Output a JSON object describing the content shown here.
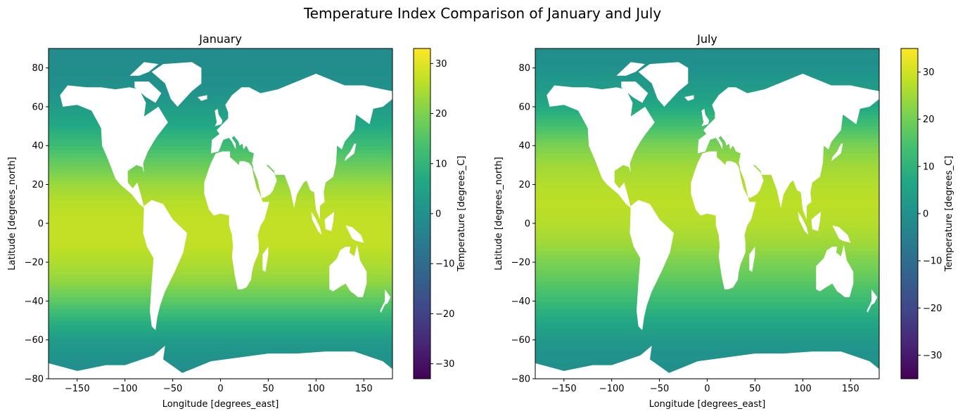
{
  "figure": {
    "suptitle": "Temperature Index Comparison of January and July",
    "colormap": "viridis",
    "land_color": "#ffffff"
  },
  "chart_data": [
    {
      "type": "heatmap",
      "title": "January",
      "xlabel": "Longitude [degrees_east]",
      "ylabel": "Latitude [degrees_north]",
      "xlim": [
        -180,
        180
      ],
      "ylim": [
        -80,
        90
      ],
      "xticks": [
        -150,
        -100,
        -50,
        0,
        50,
        100,
        150
      ],
      "xtick_labels": [
        "−150",
        "−100",
        "−50",
        "0",
        "50",
        "100",
        "150"
      ],
      "yticks": [
        -80,
        -60,
        -40,
        -20,
        0,
        20,
        40,
        60,
        80
      ],
      "ytick_labels": [
        "−80",
        "−60",
        "−40",
        "−20",
        "0",
        "20",
        "40",
        "60",
        "80"
      ],
      "colorbar": {
        "label": "Temperature [degrees_C]",
        "range": [
          -33,
          33
        ],
        "ticks": [
          -30,
          -20,
          -10,
          0,
          10,
          20,
          30
        ],
        "tick_labels": [
          "−30",
          "−20",
          "−10",
          "0",
          "10",
          "20",
          "30"
        ]
      },
      "latitude_profile": {
        "lat": [
          -78,
          -70,
          -60,
          -50,
          -40,
          -30,
          -20,
          -10,
          0,
          10,
          20,
          30,
          40,
          50,
          60,
          70,
          80,
          90
        ],
        "temperature": [
          -1,
          0,
          3,
          9,
          16,
          22,
          25,
          27,
          27,
          26,
          23,
          18,
          12,
          7,
          3,
          0,
          -1,
          -1
        ]
      }
    },
    {
      "type": "heatmap",
      "title": "July",
      "xlabel": "Longitude [degrees_east]",
      "ylabel": "Latitude [degrees_north]",
      "xlim": [
        -180,
        180
      ],
      "ylim": [
        -80,
        90
      ],
      "xticks": [
        -150,
        -100,
        -50,
        0,
        50,
        100,
        150
      ],
      "xtick_labels": [
        "−150",
        "−100",
        "−50",
        "0",
        "50",
        "100",
        "150"
      ],
      "yticks": [
        -80,
        -60,
        -40,
        -20,
        0,
        20,
        40,
        60,
        80
      ],
      "ytick_labels": [
        "−80",
        "−60",
        "−40",
        "−20",
        "0",
        "20",
        "40",
        "60",
        "80"
      ],
      "colorbar": {
        "label": "Temperature [degrees_C]",
        "range": [
          -35,
          35
        ],
        "ticks": [
          -30,
          -20,
          -10,
          0,
          10,
          20,
          30
        ],
        "tick_labels": [
          "−30",
          "−20",
          "−10",
          "0",
          "10",
          "20",
          "30"
        ]
      },
      "latitude_profile": {
        "lat": [
          -78,
          -70,
          -60,
          -50,
          -40,
          -30,
          -20,
          -10,
          0,
          10,
          20,
          30,
          40,
          50,
          60,
          70,
          80,
          90
        ],
        "temperature": [
          -1,
          0,
          2,
          7,
          12,
          17,
          21,
          25,
          27,
          28,
          27,
          25,
          21,
          14,
          7,
          3,
          0,
          -1
        ]
      }
    }
  ]
}
